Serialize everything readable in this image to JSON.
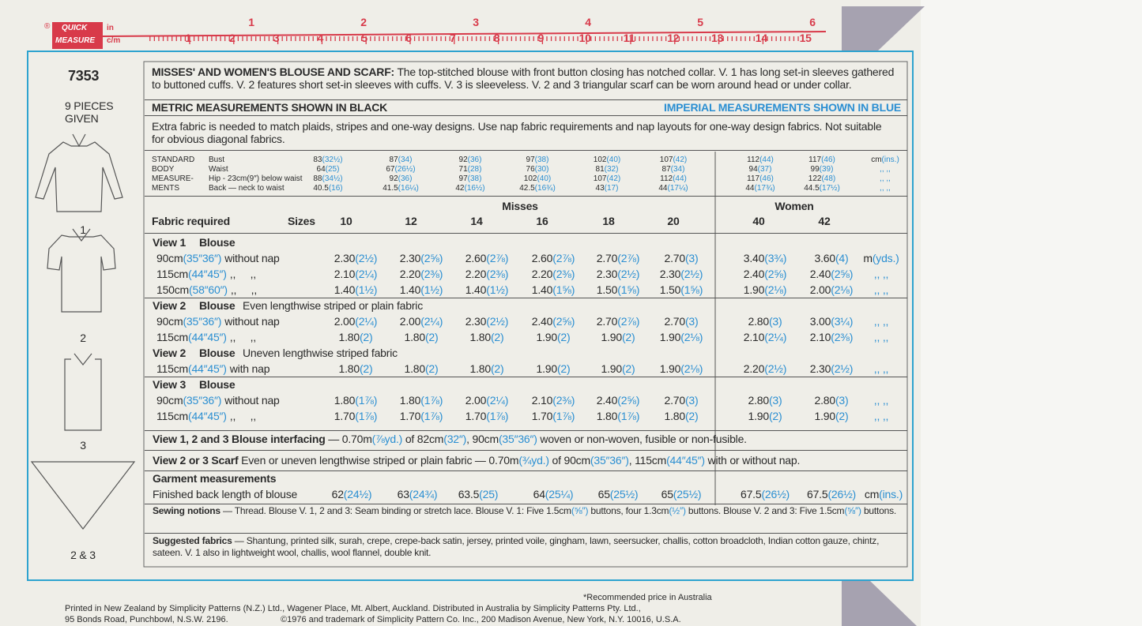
{
  "ruler": {
    "brand": "®",
    "quick": "QUICK",
    "measure": "MEASURE",
    "in": "in",
    "cm": "c/m",
    "inches": [
      "1",
      "2",
      "3",
      "4",
      "5",
      "6"
    ],
    "centimetres": [
      "1",
      "2",
      "3",
      "4",
      "5",
      "6",
      "7",
      "8",
      "9",
      "10",
      "11",
      "12",
      "13",
      "14",
      "15"
    ]
  },
  "side": {
    "number": "7353",
    "pieces": "9 PIECES",
    "given": "GIVEN",
    "views": [
      "1",
      "2",
      "3",
      "2 & 3"
    ]
  },
  "description": [
    {
      "text": "MISSES' AND WOMEN'S BLOUSE AND SCARF:",
      "style": "bold"
    },
    {
      "text": " The top-stitched blouse with front button closing has notched collar. V. 1 has long set-in sleeves gathered to buttoned cuffs. V. 2 features short set-in sleeves with cuffs. V. 3 is sleeveless. V. 2 and 3 triangular scarf can be worn around head or under collar."
    }
  ],
  "metric_heading": "METRIC MEASUREMENTS SHOWN IN BLACK",
  "imperial_heading": "IMPERIAL MEASUREMENTS SHOWN IN BLUE",
  "note": "Extra fabric is needed to match plaids, stripes and one-way designs. Use nap fabric requirements and nap layouts for one-way design fabrics. Not suitable for obvious diagonal fabrics.",
  "body": {
    "heading": [
      "STANDARD",
      "BODY",
      "MEASURE-",
      "MENTS"
    ],
    "rows": [
      {
        "label": "Bust",
        "cells": [
          [
            "83",
            "(32½)"
          ],
          [
            "87",
            "(34)"
          ],
          [
            "92",
            "(36)"
          ],
          [
            "97",
            "(38)"
          ],
          [
            "102",
            "(40)"
          ],
          [
            "107",
            "(42)"
          ],
          [
            "112",
            "(44)"
          ],
          [
            "117",
            "(46)"
          ]
        ],
        "unit": [
          "cm",
          "(ins.)"
        ]
      },
      {
        "label": "Waist",
        "cells": [
          [
            "64",
            "(25)"
          ],
          [
            "67",
            "(26½)"
          ],
          [
            "71",
            "(28)"
          ],
          [
            "76",
            "(30)"
          ],
          [
            "81",
            "(32)"
          ],
          [
            "87",
            "(34)"
          ],
          [
            "94",
            "(37)"
          ],
          [
            "99",
            "(39)"
          ]
        ],
        "unit": ",, ,,"
      },
      {
        "label": "Hip - 23cm(9″) below waist",
        "cells": [
          [
            "88",
            "(34½)"
          ],
          [
            "92",
            "(36)"
          ],
          [
            "97",
            "(38)"
          ],
          [
            "102",
            "(40)"
          ],
          [
            "107",
            "(42)"
          ],
          [
            "112",
            "(44)"
          ],
          [
            "117",
            "(46)"
          ],
          [
            "122",
            "(48)"
          ]
        ],
        "unit": ",, ,,"
      },
      {
        "label": "Back — neck to waist",
        "cells": [
          [
            "40.5",
            "(16)"
          ],
          [
            "41.5",
            "(16¼)"
          ],
          [
            "42",
            "(16½)"
          ],
          [
            "42.5",
            "(16¾)"
          ],
          [
            "43",
            "(17)"
          ],
          [
            "44",
            "(17¼)"
          ],
          [
            "44",
            "(17¾)"
          ],
          [
            "44.5",
            "(17½)"
          ]
        ],
        "unit": ",, ,,"
      }
    ]
  },
  "fabric": {
    "heading": "Fabric required",
    "sizes_label": "Sizes",
    "misses": "Misses",
    "women": "Women",
    "sizes": [
      "10",
      "12",
      "14",
      "16",
      "18",
      "20",
      "40",
      "42"
    ],
    "sections": [
      {
        "view": "View 1",
        "garment": "Blouse",
        "rows": [
          {
            "label": [
              "90cm",
              "(35″36″)",
              "without nap"
            ],
            "cells": [
              [
                "2.30",
                "(2½)"
              ],
              [
                "2.30",
                "(2⅝)"
              ],
              [
                "2.60",
                "(2⅞)"
              ],
              [
                "2.60",
                "(2⅞)"
              ],
              [
                "2.70",
                "(2⅞)"
              ],
              [
                "2.70",
                "(3)"
              ],
              [
                "3.40",
                "(3¾)"
              ],
              [
                "3.60",
                "(4)"
              ]
            ],
            "unit": [
              "m",
              "(yds.)"
            ]
          },
          {
            "label": [
              "115cm",
              "(44″45″)",
              ",,     ,,"
            ],
            "cells": [
              [
                "2.10",
                "(2¼)"
              ],
              [
                "2.20",
                "(2⅜)"
              ],
              [
                "2.20",
                "(2⅜)"
              ],
              [
                "2.20",
                "(2⅜)"
              ],
              [
                "2.30",
                "(2½)"
              ],
              [
                "2.30",
                "(2½)"
              ],
              [
                "2.40",
                "(2⅝)"
              ],
              [
                "2.40",
                "(2⅝)"
              ]
            ],
            "unit": ",, ,,"
          },
          {
            "label": [
              "150cm",
              "(58″60″)",
              ",,     ,,"
            ],
            "cells": [
              [
                "1.40",
                "(1½)"
              ],
              [
                "1.40",
                "(1½)"
              ],
              [
                "1.40",
                "(1½)"
              ],
              [
                "1.40",
                "(1⅝)"
              ],
              [
                "1.50",
                "(1⅝)"
              ],
              [
                "1.50",
                "(1⅝)"
              ],
              [
                "1.90",
                "(2⅛)"
              ],
              [
                "2.00",
                "(2⅛)"
              ]
            ],
            "unit": ",, ,,"
          }
        ]
      },
      {
        "view": "View 2",
        "garment": "Blouse",
        "note": "Even lengthwise striped or plain fabric",
        "rows": [
          {
            "label": [
              "90cm",
              "(35″36″)",
              "without nap"
            ],
            "cells": [
              [
                "2.00",
                "(2¼)"
              ],
              [
                "2.00",
                "(2¼)"
              ],
              [
                "2.30",
                "(2½)"
              ],
              [
                "2.40",
                "(2⅝)"
              ],
              [
                "2.70",
                "(2⅞)"
              ],
              [
                "2.70",
                "(3)"
              ],
              [
                "2.80",
                "(3)"
              ],
              [
                "3.00",
                "(3¼)"
              ]
            ],
            "unit": ",, ,,"
          },
          {
            "label": [
              "115cm",
              "(44″45″)",
              ",,     ,,"
            ],
            "cells": [
              [
                "1.80",
                "(2)"
              ],
              [
                "1.80",
                "(2)"
              ],
              [
                "1.80",
                "(2)"
              ],
              [
                "1.90",
                "(2)"
              ],
              [
                "1.90",
                "(2)"
              ],
              [
                "1.90",
                "(2⅛)"
              ],
              [
                "2.10",
                "(2¼)"
              ],
              [
                "2.10",
                "(2⅜)"
              ]
            ],
            "unit": ",, ,,"
          }
        ]
      },
      {
        "view": "View 2",
        "garment": "Blouse",
        "note": "Uneven lengthwise striped fabric",
        "rows": [
          {
            "label": [
              "115cm",
              "(44″45″)",
              "with nap"
            ],
            "cells": [
              [
                "1.80",
                "(2)"
              ],
              [
                "1.80",
                "(2)"
              ],
              [
                "1.80",
                "(2)"
              ],
              [
                "1.90",
                "(2)"
              ],
              [
                "1.90",
                "(2)"
              ],
              [
                "1.90",
                "(2⅛)"
              ],
              [
                "2.20",
                "(2½)"
              ],
              [
                "2.30",
                "(2½)"
              ]
            ],
            "unit": ",, ,,"
          }
        ]
      },
      {
        "view": "View 3",
        "garment": "Blouse",
        "rows": [
          {
            "label": [
              "90cm",
              "(35″36″)",
              "without nap"
            ],
            "cells": [
              [
                "1.80",
                "(1⅞)"
              ],
              [
                "1.80",
                "(1⅞)"
              ],
              [
                "2.00",
                "(2¼)"
              ],
              [
                "2.10",
                "(2⅜)"
              ],
              [
                "2.40",
                "(2⅝)"
              ],
              [
                "2.70",
                "(3)"
              ],
              [
                "2.80",
                "(3)"
              ],
              [
                "2.80",
                "(3)"
              ]
            ],
            "unit": ",, ,,"
          },
          {
            "label": [
              "115cm",
              "(44″45″)",
              ",,     ,,"
            ],
            "cells": [
              [
                "1.70",
                "(1⅞)"
              ],
              [
                "1.70",
                "(1⅞)"
              ],
              [
                "1.70",
                "(1⅞)"
              ],
              [
                "1.70",
                "(1⅞)"
              ],
              [
                "1.80",
                "(1⅞)"
              ],
              [
                "1.80",
                "(2)"
              ],
              [
                "1.90",
                "(2)"
              ],
              [
                "1.90",
                "(2)"
              ]
            ],
            "unit": ",, ,,"
          }
        ]
      }
    ]
  },
  "interfacing": [
    {
      "text": "View 1, 2 and 3   Blouse interfacing",
      "style": "bold"
    },
    {
      "text": " — 0.70m"
    },
    {
      "text": "(⅞yd.)",
      "style": "blue"
    },
    {
      "text": " of 82cm"
    },
    {
      "text": "(32″)",
      "style": "blue"
    },
    {
      "text": ", 90cm"
    },
    {
      "text": "(35″36″)",
      "style": "blue"
    },
    {
      "text": " woven or non-woven, fusible or non-fusible."
    }
  ],
  "scarf": [
    {
      "text": "View 2 or 3   Scarf",
      "style": "bold"
    },
    {
      "text": "   Even or uneven lengthwise striped or plain fabric — 0.70m"
    },
    {
      "text": "(¾yd.)",
      "style": "blue"
    },
    {
      "text": " of 90cm"
    },
    {
      "text": "(35″36″)",
      "style": "blue"
    },
    {
      "text": ", 115cm"
    },
    {
      "text": "(44″45″)",
      "style": "blue"
    },
    {
      "text": " with or without nap."
    }
  ],
  "garment": {
    "heading": "Garment measurements",
    "label": "Finished back length of blouse",
    "cells": [
      [
        "62",
        "(24½)"
      ],
      [
        "63",
        "(24¾)"
      ],
      [
        "63.5",
        "(25)"
      ],
      [
        "64",
        "(25¼)"
      ],
      [
        "65",
        "(25½)"
      ],
      [
        "65",
        "(25½)"
      ],
      [
        "67.5",
        "(26½)"
      ],
      [
        "67.5",
        "(26½)"
      ]
    ],
    "unit": [
      "cm",
      "(ins.)"
    ]
  },
  "notions": [
    {
      "text": "Sewing notions",
      "style": "bold"
    },
    {
      "text": " — Thread. Blouse V. 1, 2 and 3: Seam binding or stretch lace. Blouse V. 1: Five 1.5cm"
    },
    {
      "text": "(⅝″)",
      "style": "blue"
    },
    {
      "text": " buttons, four 1.3cm"
    },
    {
      "text": "(½″)",
      "style": "blue"
    },
    {
      "text": " buttons. Blouse V. 2 and 3: Five 1.5cm"
    },
    {
      "text": "(⅝″)",
      "style": "blue"
    },
    {
      "text": " buttons."
    }
  ],
  "fabrics": [
    {
      "text": "Suggested fabrics",
      "style": "bold"
    },
    {
      "text": " — Shantung, printed silk, surah, crepe, crepe-back satin, jersey, printed voile, gingham, lawn, seersucker, challis, cotton broadcloth, Indian cotton gauze, chintz, sateen. V. 1 also in lightweight wool, challis, wool flannel, double knit."
    }
  ],
  "footer": {
    "price": "*Recommended price in Australia",
    "line1": "Printed in New Zealand by Simplicity Patterns (N.Z.) Ltd., Wagener Place, Mt. Albert, Auckland. Distributed in Australia by Simplicity Patterns Pty. Ltd.,",
    "line2": "95 Bonds Road, Punchbowl, N.S.W. 2196.",
    "line3": "©1976 and trademark of Simplicity Pattern Co. Inc., 200 Madison Avenue, New York, N.Y. 10016, U.S.A."
  }
}
